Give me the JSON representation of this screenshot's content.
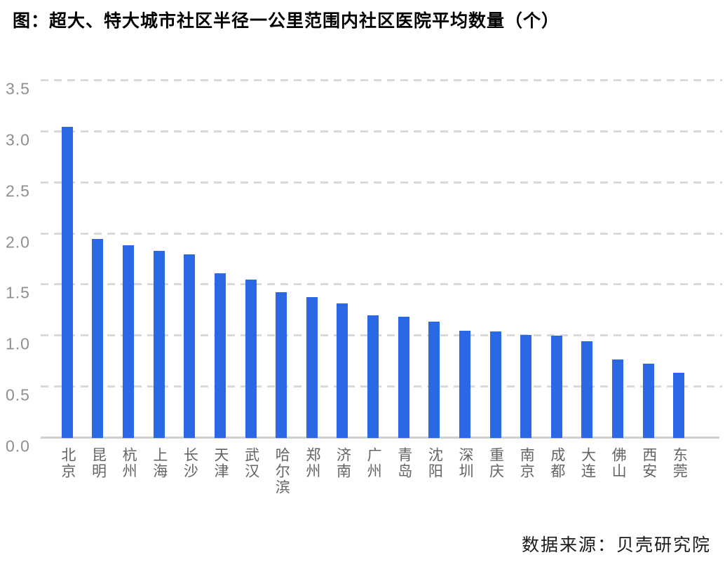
{
  "title": "图：超大、特大城市社区半径一公里范围内社区医院平均数量（个）",
  "source": "数据来源：贝壳研究院",
  "colors": {
    "bar": "#2B68E6",
    "gridline": "#d9d9d9",
    "baseline": "#cfcfcf",
    "y_tick_text": "#8f8f8f",
    "x_label_text": "#646464",
    "title_text": "#000000",
    "source_text": "#1a1a1a",
    "background": "#ffffff"
  },
  "chart_data": {
    "type": "bar",
    "title": "图：超大、特大城市社区半径一公里范围内社区医院平均数量（个）",
    "categories": [
      "北京",
      "昆明",
      "杭州",
      "上海",
      "长沙",
      "天津",
      "武汉",
      "哈尔滨",
      "郑州",
      "济南",
      "广州",
      "青岛",
      "沈阳",
      "深圳",
      "重庆",
      "南京",
      "成都",
      "大连",
      "佛山",
      "西安",
      "东莞"
    ],
    "values": [
      3.05,
      1.95,
      1.89,
      1.83,
      1.8,
      1.61,
      1.55,
      1.43,
      1.38,
      1.32,
      1.2,
      1.19,
      1.14,
      1.05,
      1.04,
      1.01,
      1.0,
      0.95,
      0.77,
      0.73,
      0.64
    ],
    "xlabel": "",
    "ylabel": "",
    "ylim": [
      0,
      3.5
    ],
    "yticks": [
      0.0,
      0.5,
      1.0,
      1.5,
      2.0,
      2.5,
      3.0,
      3.5
    ],
    "ytick_format_decimals": 1,
    "grid": "dashed-horizontal",
    "legend": "none",
    "bar_color": "#2B68E6",
    "source": "数据来源：贝壳研究院"
  }
}
